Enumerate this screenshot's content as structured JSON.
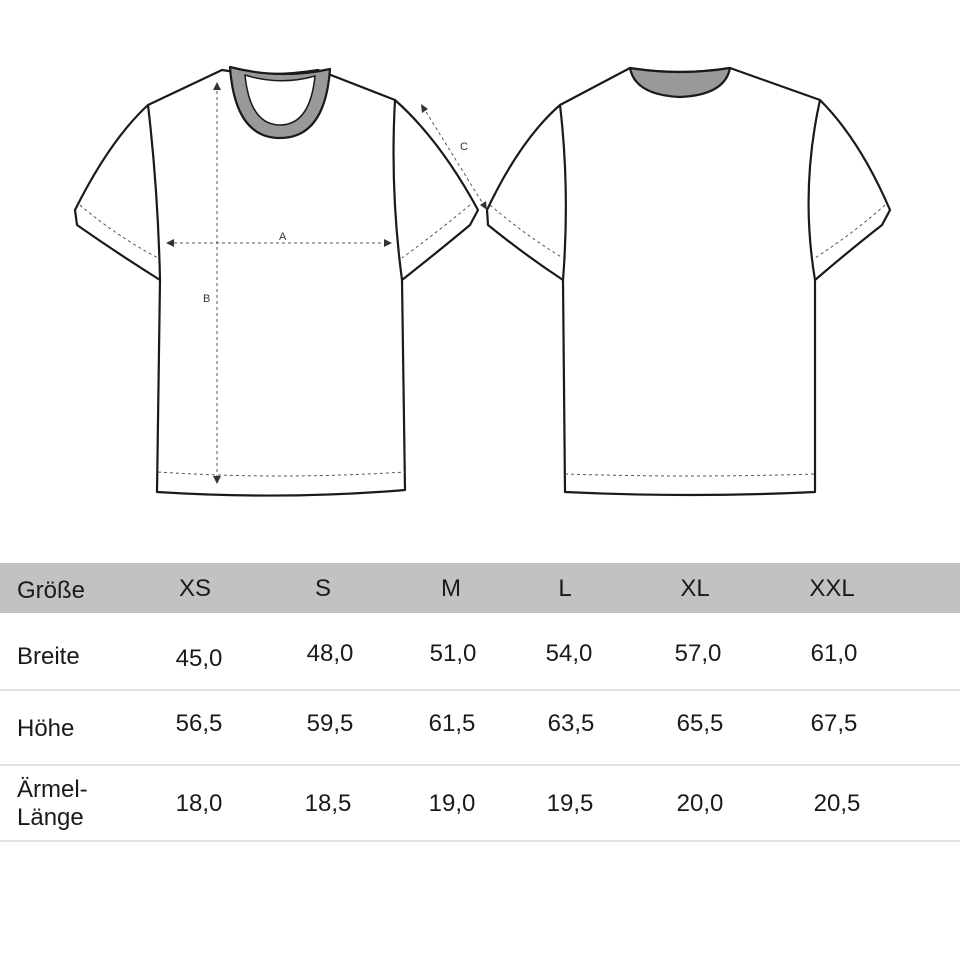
{
  "diagram": {
    "measure_labels": [
      "A",
      "B",
      "C"
    ]
  },
  "table": {
    "header": {
      "label": "Größe",
      "sizes": [
        "XS",
        "S",
        "M",
        "L",
        "XL",
        "XXL"
      ]
    },
    "rows": [
      {
        "label": "Breite",
        "values": [
          "45,0",
          "48,0",
          "51,0",
          "54,0",
          "57,0",
          "61,0"
        ]
      },
      {
        "label": "Höhe",
        "values": [
          "56,5",
          "59,5",
          "61,5",
          "63,5",
          "65,5",
          "67,5"
        ]
      },
      {
        "label_line1": "Ärmel-",
        "label_line2": "Länge",
        "values": [
          "18,0",
          "18,5",
          "19,0",
          "19,5",
          "20,0",
          "20,5"
        ]
      }
    ],
    "header_color": "#c2c2c2"
  }
}
